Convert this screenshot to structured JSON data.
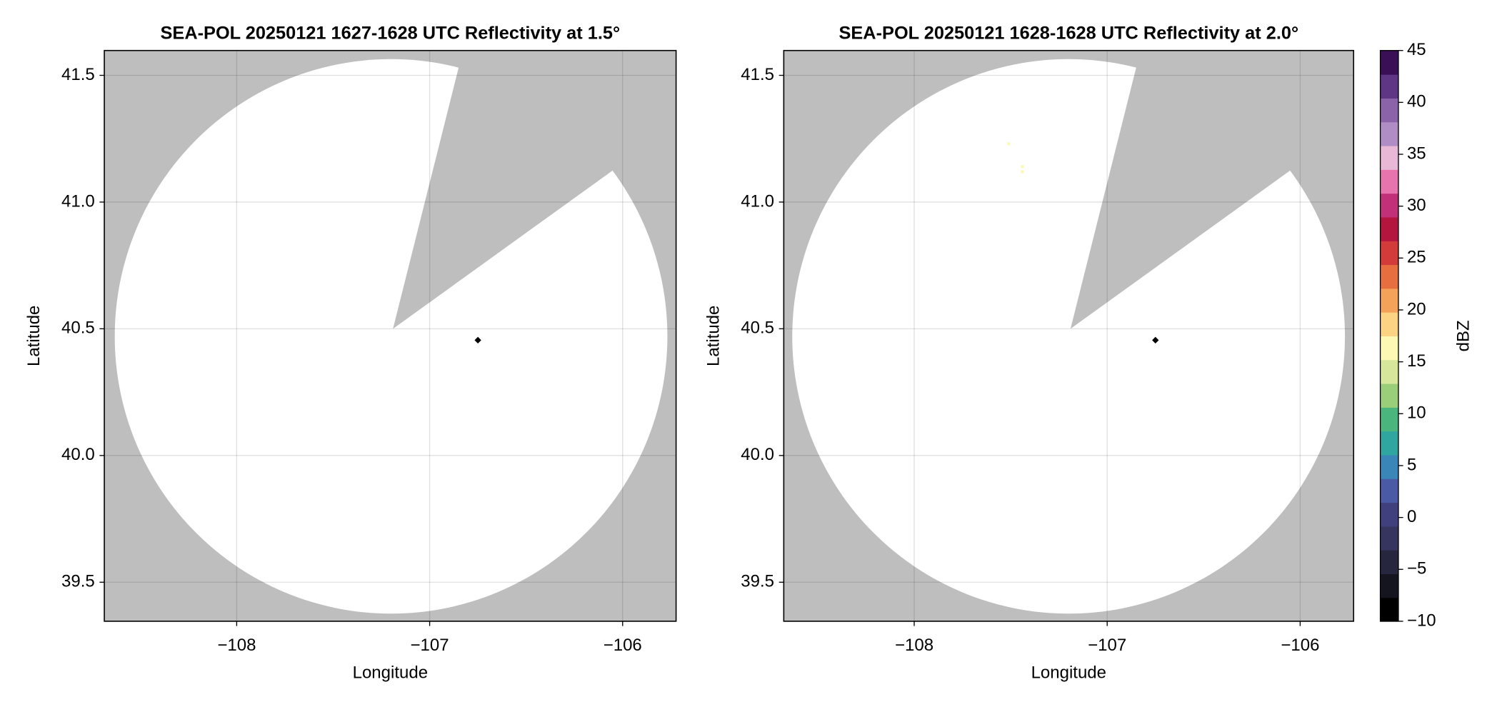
{
  "chart_data": [
    {
      "type": "radar-map",
      "title": "SEA-POL 20250121 1627-1628 UTC Reflectivity at 1.5°",
      "x_label": "Longitude",
      "y_label": "Latitude",
      "xlim": [
        -108.686,
        -105.723
      ],
      "ylim": [
        39.346,
        41.598
      ],
      "xticks": [
        {
          "value": -108,
          "label": "−108"
        },
        {
          "value": -107,
          "label": "−107"
        },
        {
          "value": -106,
          "label": "−106"
        }
      ],
      "yticks": [
        39.5,
        {
          "value": 40.0,
          "label": "40.0"
        },
        40.5,
        {
          "value": 41.0,
          "label": "41.0"
        },
        41.5
      ],
      "grid": true,
      "background_color": "#bebebe",
      "coverage_color": "#ffffff",
      "coverage": {
        "center": [
          -107.2,
          40.47
        ],
        "radius": [
          1.432,
          1.094
        ]
      },
      "blank_sector": {
        "lon": [
          -107.19,
          -106.85,
          -106.06
        ],
        "lat": [
          40.5,
          41.53,
          41.12
        ]
      },
      "radar_site": {
        "lon": -106.75,
        "lat": 40.455,
        "color": "#000000"
      },
      "echoes": {
        "lon": [],
        "lat": [],
        "values": []
      }
    },
    {
      "type": "radar-map",
      "title": "SEA-POL 20250121 1628-1628 UTC Reflectivity at 2.0°",
      "x_label": "Longitude",
      "y_label": "Latitude",
      "xlim": [
        -108.676,
        -105.723
      ],
      "ylim": [
        39.346,
        41.598
      ],
      "xticks": [
        {
          "value": -108,
          "label": "−108"
        },
        {
          "value": -107,
          "label": "−107"
        },
        {
          "value": -106,
          "label": "−106"
        }
      ],
      "yticks": [
        39.5,
        {
          "value": 40.0,
          "label": "40.0"
        },
        40.5,
        {
          "value": 41.0,
          "label": "41.0"
        },
        41.5
      ],
      "grid": true,
      "background_color": "#bebebe",
      "coverage_color": "#ffffff",
      "coverage": {
        "center": [
          -107.2,
          40.47
        ],
        "radius": [
          1.432,
          1.094
        ]
      },
      "blank_sector": {
        "lon": [
          -107.19,
          -106.85,
          -106.06
        ],
        "lat": [
          40.5,
          41.53,
          41.12
        ]
      },
      "radar_site": {
        "lon": -106.75,
        "lat": 40.455,
        "color": "#000000"
      },
      "echoes": {
        "lon": [
          -107.51,
          -107.44,
          -107.44
        ],
        "lat": [
          41.23,
          41.14,
          41.12
        ],
        "values": [
          17,
          17,
          17
        ]
      },
      "colorbar": {
        "label": "dBZ",
        "lim": [
          -10,
          45
        ],
        "ticks": [
          {
            "value": -10,
            "label": "−10"
          },
          {
            "value": -5,
            "label": "−5"
          },
          0,
          5,
          10,
          15,
          20,
          25,
          30,
          35,
          40,
          45
        ],
        "colors": [
          "#000000",
          "#151520",
          "#26263f",
          "#35355f",
          "#40407f",
          "#4a5aa5",
          "#3a86b8",
          "#2fa6a0",
          "#4bb57e",
          "#9bce79",
          "#d6e69a",
          "#fdf8b4",
          "#fcd283",
          "#f4a25a",
          "#e76e3f",
          "#d33a3a",
          "#b4153f",
          "#c2307a",
          "#e774ad",
          "#eab8d7",
          "#b08dc4",
          "#8a63a8",
          "#5f3585",
          "#3b0f56"
        ]
      }
    }
  ]
}
